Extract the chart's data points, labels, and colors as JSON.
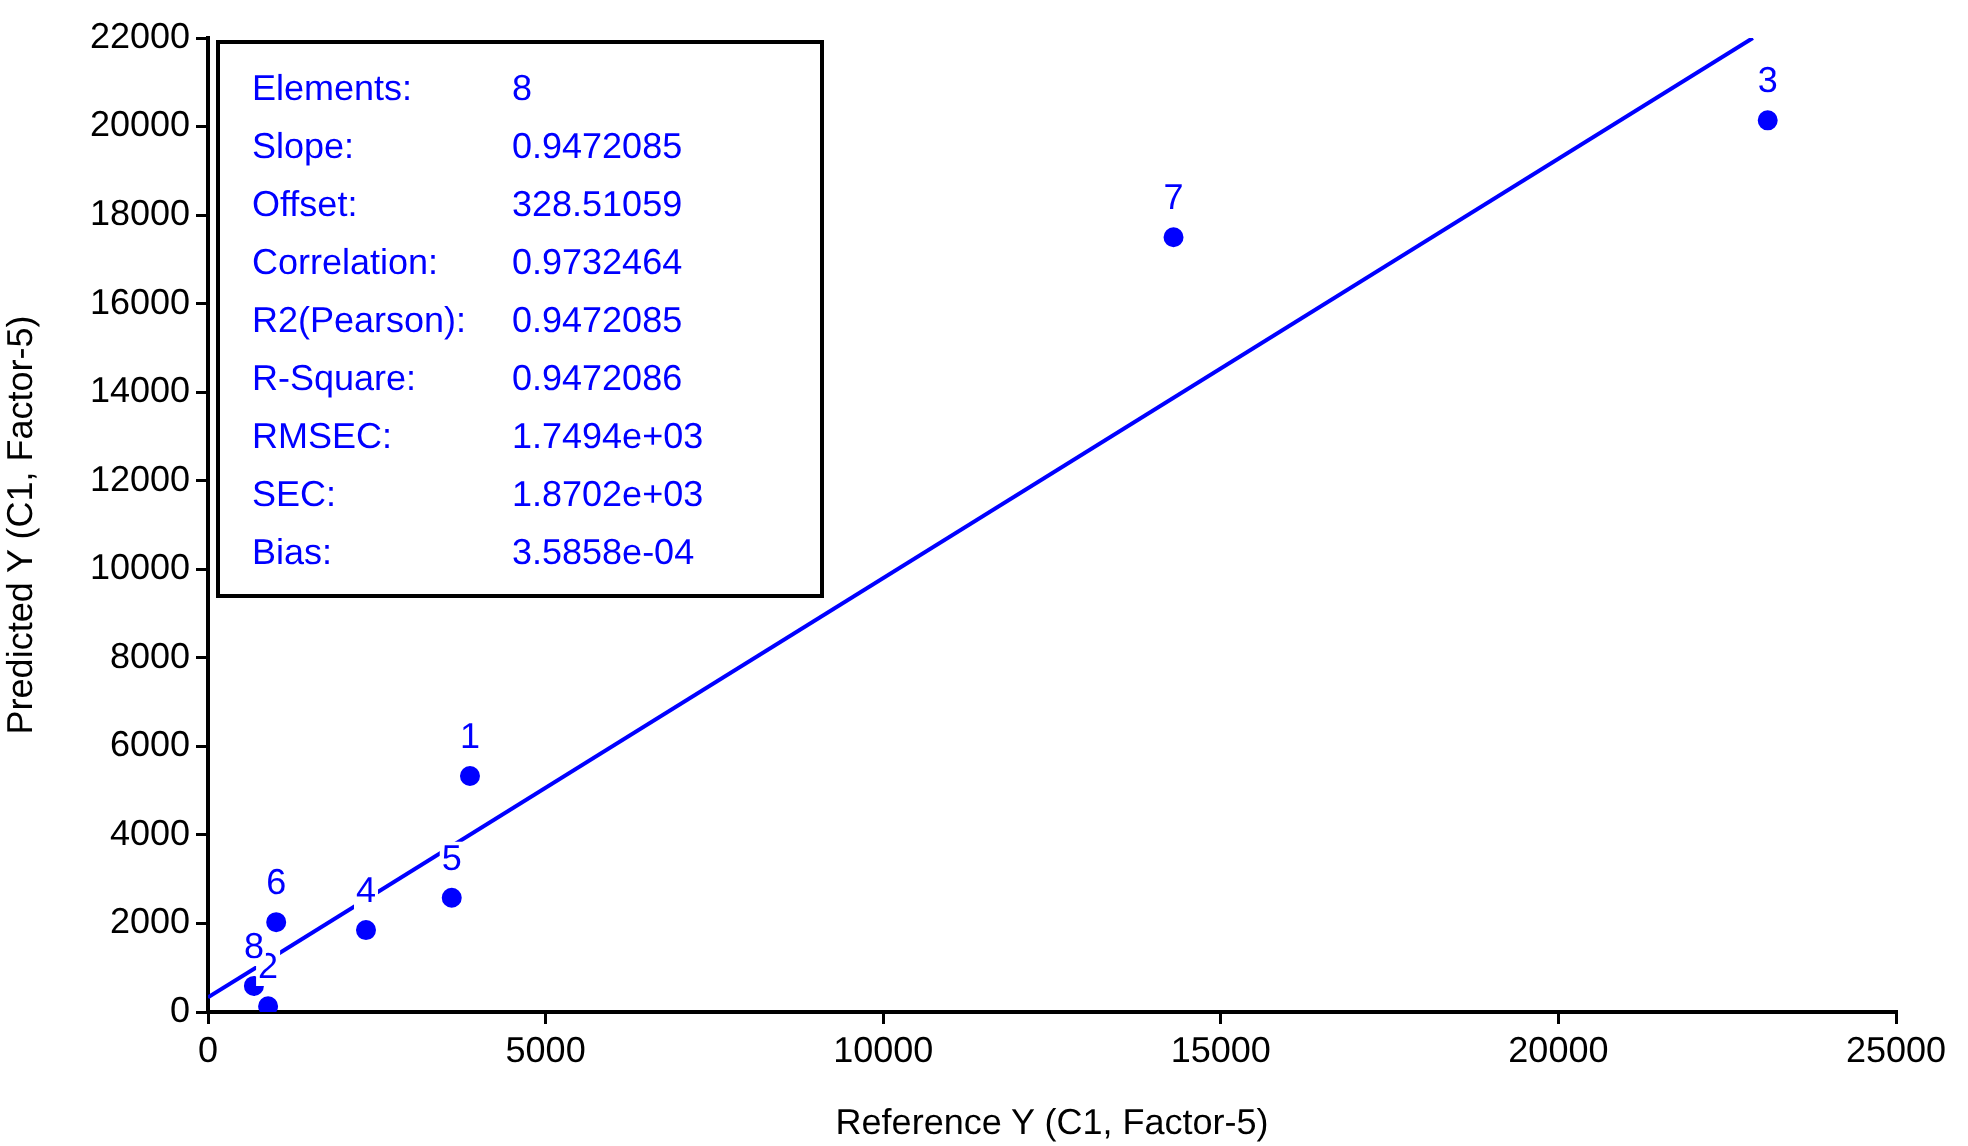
{
  "chart_data": {
    "type": "scatter",
    "xlabel": "Reference Y (C1, Factor-5)",
    "ylabel": "Predicted Y (C1, Factor-5)",
    "xlim": [
      0,
      25000
    ],
    "xticks": [
      0,
      5000,
      10000,
      15000,
      20000,
      25000
    ],
    "ylim": [
      0,
      22000
    ],
    "yticks": [
      0,
      2000,
      4000,
      6000,
      8000,
      10000,
      12000,
      14000,
      16000,
      18000,
      20000,
      22000
    ],
    "grid": false,
    "series": [
      {
        "marker": "circle",
        "color": "#0000ff",
        "x": [
          3880,
          890,
          23100,
          2340,
          3610,
          1010,
          14300,
          680
        ],
        "values": [
          5330,
          130,
          20140,
          1850,
          2580,
          2030,
          17500,
          590
        ]
      },
      {
        "type": "line",
        "marker": "none",
        "color": "#0000ff",
        "x": [
          0,
          22880
        ],
        "values": [
          330,
          22000
        ]
      }
    ],
    "annotations": [
      "Elements: 8",
      "Slope: 0.9472085",
      "Offset: 328.51059",
      "Correlation: 0.9732464",
      "R2(Pearson): 0.9472085",
      "R-Square: 0.9472086",
      "RMSEC: 1.7494e+03",
      "SEC: 1.8702e+03",
      "Bias: 3.5858e-04",
      {
        "text": "1",
        "x": 3880,
        "y": 5330
      },
      {
        "text": "2",
        "x": 890,
        "y": 135
      },
      {
        "text": "3",
        "x": 23100,
        "y": 20140
      },
      {
        "text": "4",
        "x": 2340,
        "y": 1850
      },
      {
        "text": "5",
        "x": 3610,
        "y": 2580
      },
      {
        "text": "6",
        "x": 1010,
        "y": 2030
      },
      {
        "text": "7",
        "x": 14300,
        "y": 17500
      },
      {
        "text": "8",
        "x": 680,
        "y": 590
      }
    ]
  }
}
